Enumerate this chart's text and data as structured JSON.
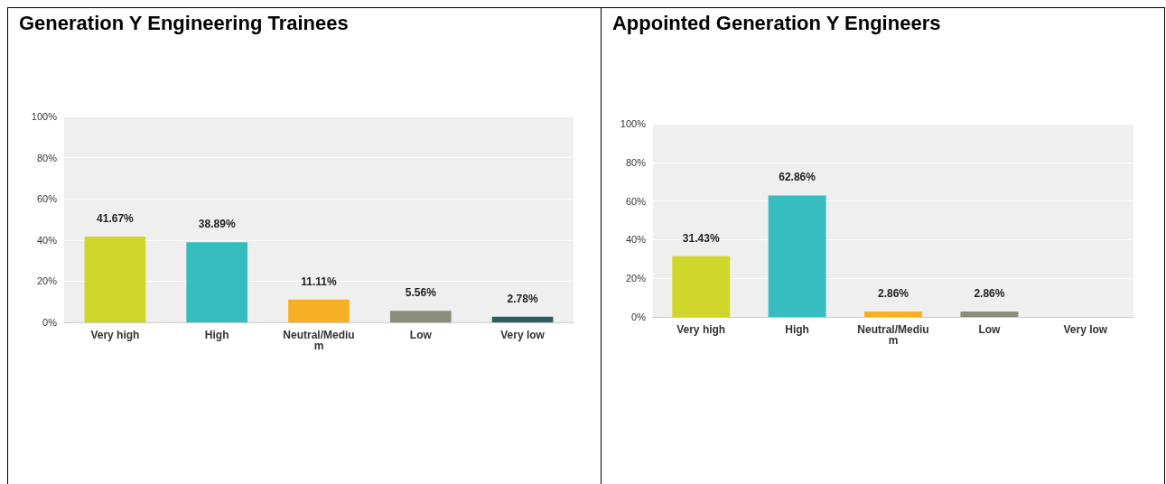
{
  "chart_data": [
    {
      "type": "bar",
      "title": "Generation Y Engineering Trainees",
      "categories": [
        "Very high",
        "High",
        "Neutral/Medium",
        "Low",
        "Very low"
      ],
      "values": [
        41.67,
        38.89,
        11.11,
        5.56,
        2.78
      ],
      "colors": [
        "#d0d52a",
        "#35bdc0",
        "#f6b026",
        "#8b8c7a",
        "#2f5b63"
      ],
      "value_labels": [
        "41.67%",
        "38.89%",
        "11.11%",
        "5.56%",
        "2.78%"
      ],
      "ylim": [
        0,
        100
      ],
      "yticks": [
        {
          "value": 0,
          "label": "0%"
        },
        {
          "value": 20,
          "label": "20%"
        },
        {
          "value": 40,
          "label": "40%"
        },
        {
          "value": 60,
          "label": "60%"
        },
        {
          "value": 80,
          "label": "80%"
        },
        {
          "value": 100,
          "label": "100%"
        }
      ],
      "grid": "y"
    },
    {
      "type": "bar",
      "title": "Appointed Generation Y Engineers",
      "categories": [
        "Very high",
        "High",
        "Neutral/Medium",
        "Low",
        "Very low"
      ],
      "values": [
        31.43,
        62.86,
        2.86,
        2.86,
        0
      ],
      "colors": [
        "#d0d52a",
        "#35bdc0",
        "#f6b026",
        "#8b8c7a",
        "#2f5b63"
      ],
      "value_labels": [
        "31.43%",
        "62.86%",
        "2.86%",
        "2.86%",
        null
      ],
      "ylim": [
        0,
        100
      ],
      "yticks": [
        {
          "value": 0,
          "label": "0%"
        },
        {
          "value": 20,
          "label": "20%"
        },
        {
          "value": 40,
          "label": "40%"
        },
        {
          "value": 60,
          "label": "60%"
        },
        {
          "value": 80,
          "label": "80%"
        },
        {
          "value": 100,
          "label": "100%"
        }
      ],
      "grid": "y"
    }
  ]
}
